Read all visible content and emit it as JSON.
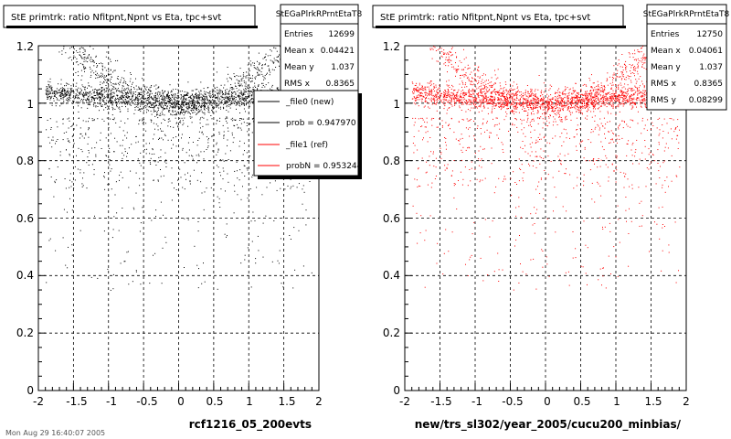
{
  "panels": [
    {
      "title": "StE primtrk: ratio Nfitpnt,Npnt vs Eta, tpc+svt",
      "stats": {
        "header": "StEGaPlrkRPrntEtaT8",
        "rows": [
          {
            "label": "Entries",
            "value": "12699"
          },
          {
            "label": "Mean x",
            "value": "0.04421"
          },
          {
            "label": "Mean y",
            "value": "1.037"
          },
          {
            "label": "RMS x",
            "value": "0.8365"
          }
        ]
      },
      "legend": [
        {
          "label": "_file0 (new)",
          "color": "#000000"
        },
        {
          "label": "prob = 0.947970",
          "color": "#000000"
        },
        {
          "label": "_file1 (ref)",
          "color": "#ff0000"
        },
        {
          "label": "probN = 0.953244",
          "color": "#ff0000"
        }
      ],
      "xlabel": "rcf1216_05_200evts"
    },
    {
      "title": "StE primtrk: ratio Nfitpnt,Npnt vs Eta, tpc+svt",
      "stats": {
        "header": "StEGaPlrkRPrntEtaT8",
        "rows": [
          {
            "label": "Entries",
            "value": "12750"
          },
          {
            "label": "Mean x",
            "value": "0.04061"
          },
          {
            "label": "Mean y",
            "value": "1.037"
          },
          {
            "label": "RMS x",
            "value": "0.8365"
          },
          {
            "label": "RMS y",
            "value": "0.08299"
          }
        ]
      },
      "xlabel": "new/trs_sl302/year_2005/cucu200_minbias/"
    }
  ],
  "footer_text": "Mon Aug 29 16:40:07 2005",
  "chart_data": [
    {
      "type": "scatter",
      "title": "StE primtrk: ratio Nfitpnt,Npnt vs Eta, tpc+svt",
      "xlabel": "rcf1216_05_200evts",
      "ylabel": "",
      "xlim": [
        -2,
        2
      ],
      "ylim": [
        0,
        1.2
      ],
      "xticks": [
        "-2",
        "-1.5",
        "-1",
        "-0.5",
        "0",
        "0.5",
        "1",
        "1.5",
        "2"
      ],
      "yticks": [
        "0",
        "0.2",
        "0.4",
        "0.6",
        "0.8",
        "1",
        "1.2"
      ],
      "grid": true,
      "color": "#000000",
      "entries": 12699,
      "mean_x": 0.04421,
      "mean_y": 1.037,
      "rms_x": 0.8365
    },
    {
      "type": "scatter",
      "title": "StE primtrk: ratio Nfitpnt,Npnt vs Eta, tpc+svt",
      "xlabel": "new/trs_sl302/year_2005/cucu200_minbias/",
      "ylabel": "",
      "xlim": [
        -2,
        2
      ],
      "ylim": [
        0,
        1.2
      ],
      "xticks": [
        "-2",
        "-1.5",
        "-1",
        "-0.5",
        "0",
        "0.5",
        "1",
        "1.5",
        "2"
      ],
      "yticks": [
        "0",
        "0.2",
        "0.4",
        "0.6",
        "0.8",
        "1",
        "1.2"
      ],
      "grid": true,
      "color": "#ff0000",
      "entries": 12750,
      "mean_x": 0.04061,
      "mean_y": 1.037,
      "rms_x": 0.8365,
      "rms_y": 0.08299
    }
  ]
}
